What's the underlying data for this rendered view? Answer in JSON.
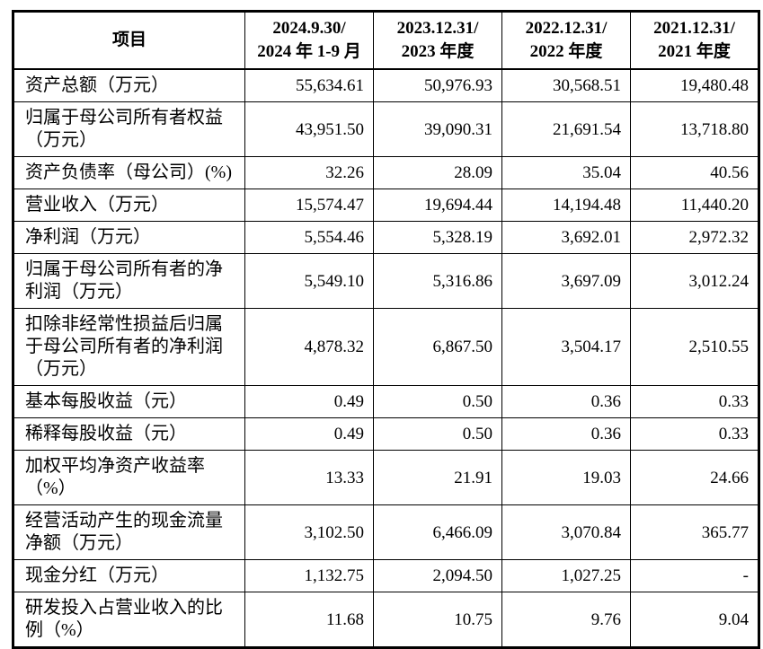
{
  "table": {
    "border_color": "#000000",
    "text_color": "#000000",
    "background_color": "#ffffff",
    "header": {
      "item": "项目",
      "periods": [
        "2024.9.30/\n2024 年 1-9 月",
        "2023.12.31/\n2023 年度",
        "2022.12.31/\n2022 年度",
        "2021.12.31/\n2021 年度"
      ]
    },
    "rows": [
      {
        "label": "资产总额（万元）",
        "values": [
          "55,634.61",
          "50,976.93",
          "30,568.51",
          "19,480.48"
        ]
      },
      {
        "label": "归属于母公司所有者权益\n（万元）",
        "values": [
          "43,951.50",
          "39,090.31",
          "21,691.54",
          "13,718.80"
        ]
      },
      {
        "label": "资产负债率（母公司）(%)",
        "values": [
          "32.26",
          "28.09",
          "35.04",
          "40.56"
        ]
      },
      {
        "label": "营业收入（万元）",
        "values": [
          "15,574.47",
          "19,694.44",
          "14,194.48",
          "11,440.20"
        ]
      },
      {
        "label": "净利润（万元）",
        "values": [
          "5,554.46",
          "5,328.19",
          "3,692.01",
          "2,972.32"
        ]
      },
      {
        "label": "归属于母公司所有者的净\n利润（万元）",
        "values": [
          "5,549.10",
          "5,316.86",
          "3,697.09",
          "3,012.24"
        ]
      },
      {
        "label": "扣除非经常性损益后归属\n于母公司所有者的净利润\n（万元）",
        "values": [
          "4,878.32",
          "6,867.50",
          "3,504.17",
          "2,510.55"
        ]
      },
      {
        "label": "基本每股收益（元）",
        "values": [
          "0.49",
          "0.50",
          "0.36",
          "0.33"
        ]
      },
      {
        "label": "稀释每股收益（元）",
        "values": [
          "0.49",
          "0.50",
          "0.36",
          "0.33"
        ]
      },
      {
        "label": "加权平均净资产收益率\n（%）",
        "values": [
          "13.33",
          "21.91",
          "19.03",
          "24.66"
        ]
      },
      {
        "label": "经营活动产生的现金流量\n净额（万元）",
        "values": [
          "3,102.50",
          "6,466.09",
          "3,070.84",
          "365.77"
        ]
      },
      {
        "label": "现金分红（万元）",
        "values": [
          "1,132.75",
          "2,094.50",
          "1,027.25",
          "-"
        ]
      },
      {
        "label": "研发投入占营业收入的比\n例（%）",
        "values": [
          "11.68",
          "10.75",
          "9.76",
          "9.04"
        ]
      }
    ]
  }
}
